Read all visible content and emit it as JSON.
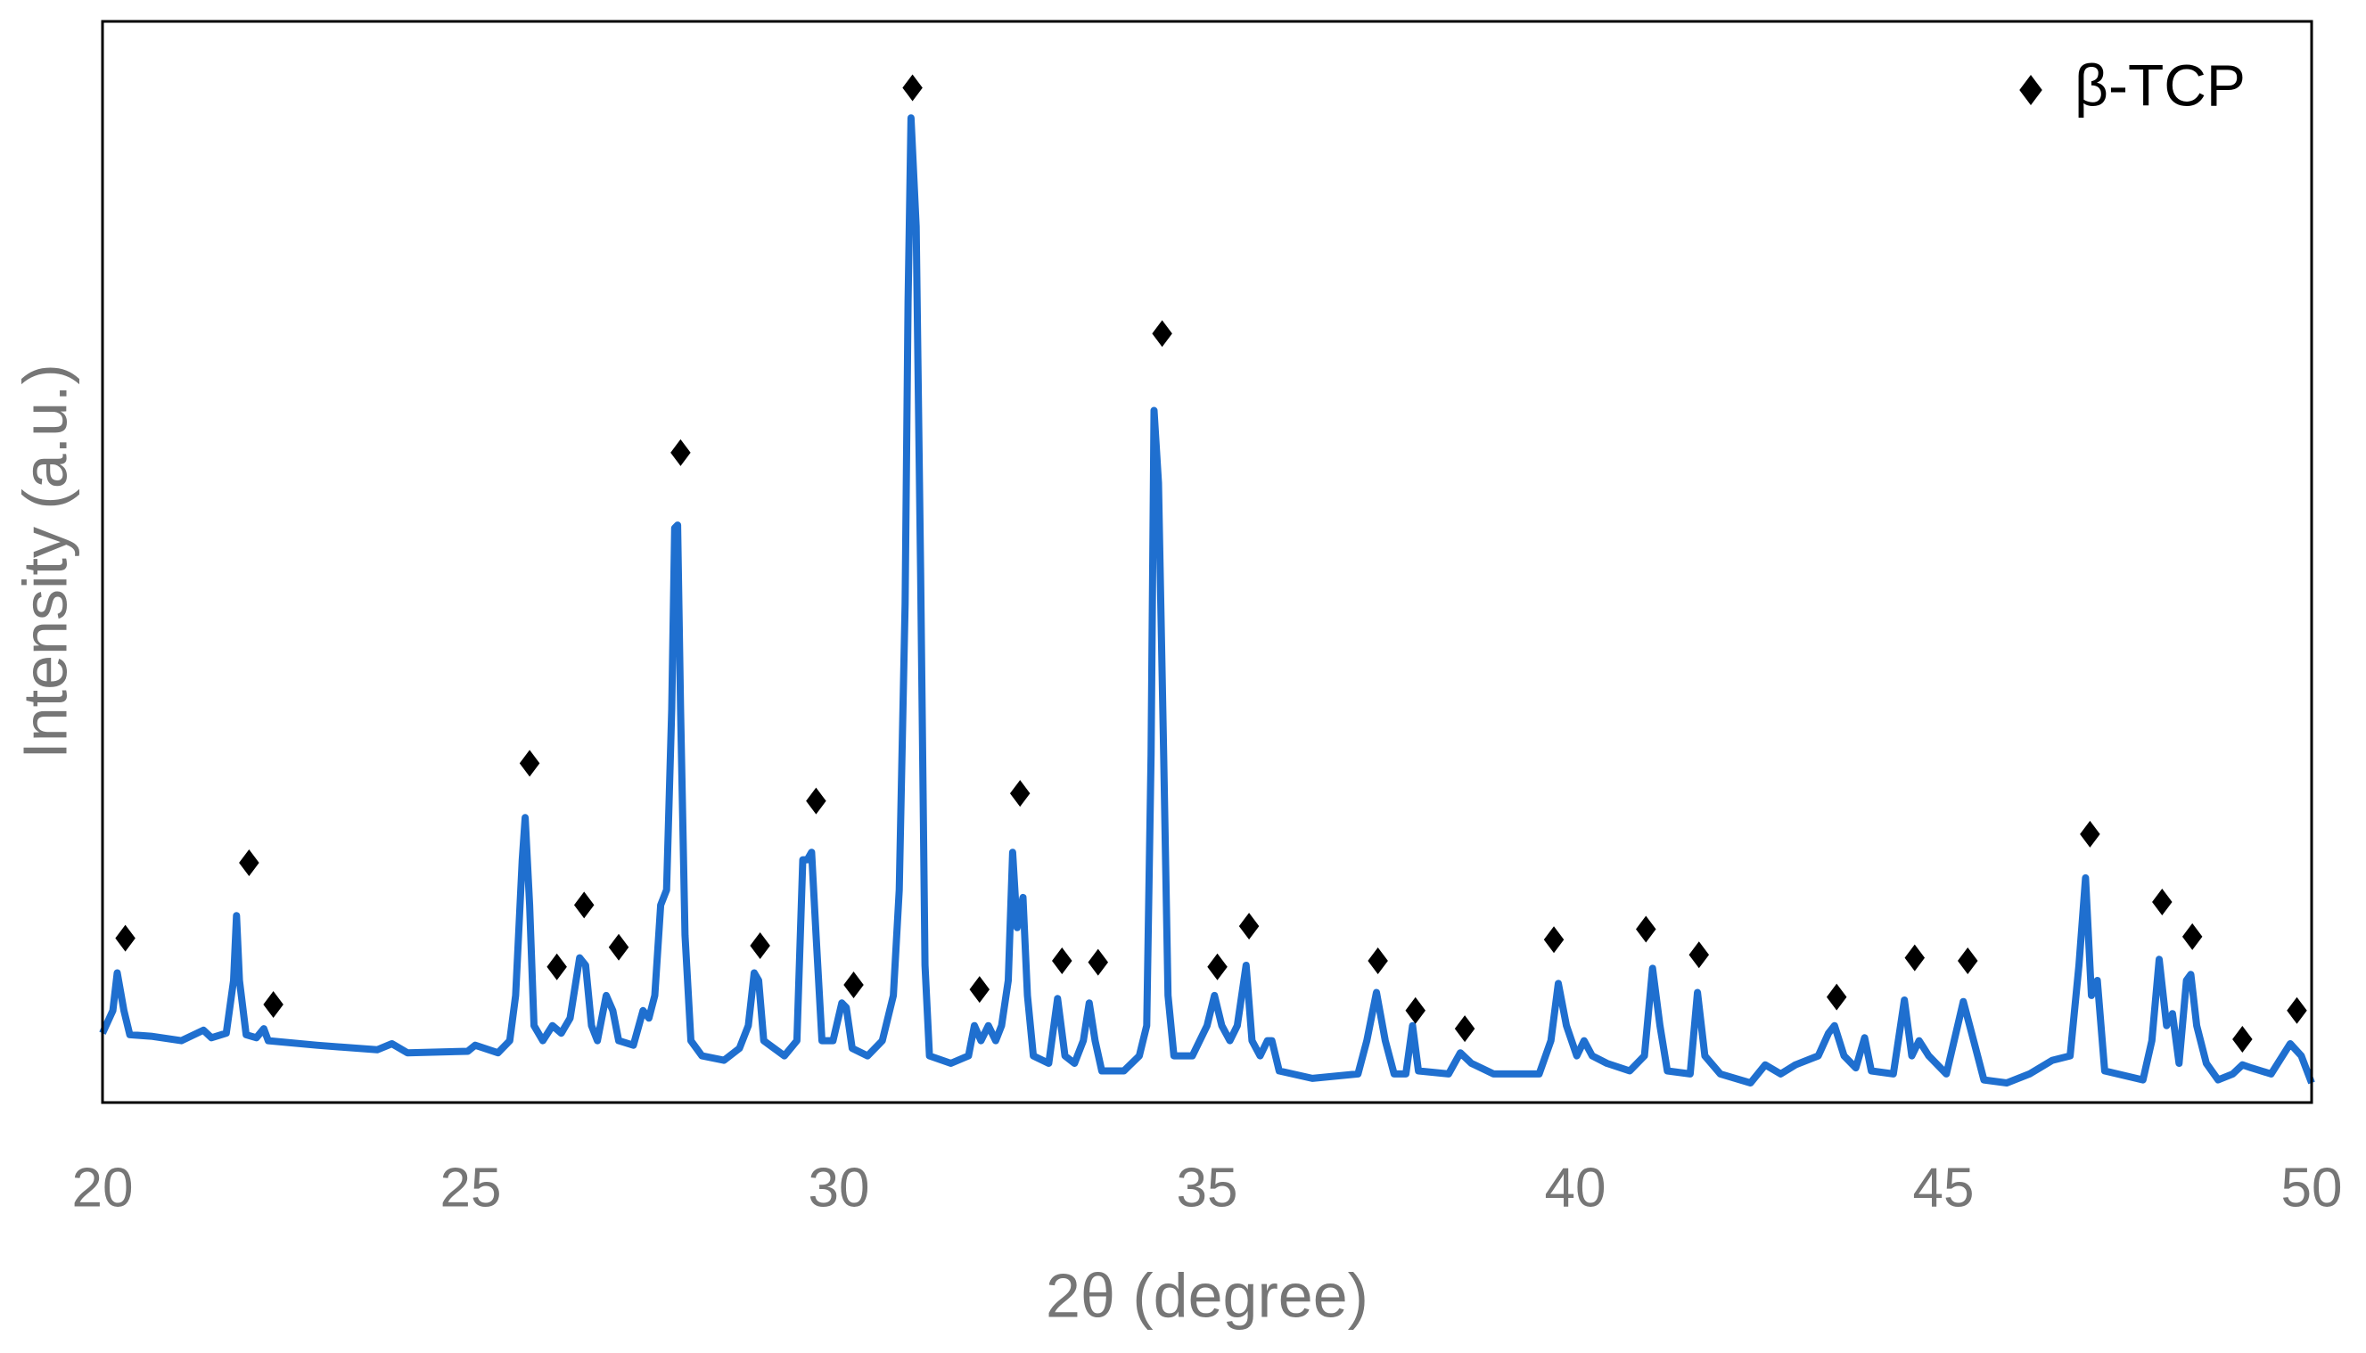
{
  "chart_data": {
    "type": "line",
    "x_label": "2θ (degree)",
    "y_label": "Intensity (a.u.)",
    "xlim": [
      20,
      50
    ],
    "xticks": [
      20,
      25,
      30,
      35,
      40,
      45,
      50
    ],
    "ylim": [
      0,
      717
    ],
    "legend": "top-right",
    "series": [
      {
        "kind": "line",
        "color": "#1f6fcf",
        "x": [
          20.0,
          20.14,
          20.2,
          20.29,
          20.37,
          20.66,
          21.07,
          21.37,
          21.48,
          21.68,
          21.78,
          21.82,
          21.86,
          21.95,
          22.09,
          22.19,
          22.25,
          22.91,
          23.73,
          23.93,
          24.14,
          24.96,
          25.06,
          25.37,
          25.53,
          25.61,
          25.7,
          25.74,
          25.8,
          25.86,
          25.98,
          26.11,
          26.23,
          26.35,
          26.48,
          26.56,
          26.64,
          26.72,
          26.84,
          26.93,
          27.01,
          27.21,
          27.34,
          27.42,
          27.5,
          27.58,
          27.66,
          27.73,
          27.77,
          27.81,
          27.85,
          27.91,
          27.99,
          28.14,
          28.44,
          28.65,
          28.77,
          28.85,
          28.91,
          28.98,
          29.26,
          29.43,
          29.51,
          29.57,
          29.63,
          29.69,
          29.77,
          29.92,
          30.04,
          30.1,
          30.18,
          30.39,
          30.59,
          30.74,
          30.82,
          30.9,
          30.94,
          30.98,
          31.05,
          31.11,
          31.17,
          31.23,
          31.52,
          31.76,
          31.84,
          31.93,
          32.03,
          32.13,
          32.21,
          32.3,
          32.36,
          32.42,
          32.5,
          32.56,
          32.64,
          32.85,
          32.97,
          33.07,
          33.2,
          33.32,
          33.4,
          33.48,
          33.57,
          33.87,
          34.08,
          34.18,
          34.24,
          34.28,
          34.34,
          34.41,
          34.47,
          34.55,
          34.8,
          35.0,
          35.1,
          35.2,
          35.31,
          35.41,
          35.53,
          35.61,
          35.72,
          35.82,
          35.88,
          35.98,
          36.43,
          37.05,
          37.17,
          37.3,
          37.42,
          37.54,
          37.7,
          37.79,
          37.87,
          38.28,
          38.44,
          38.59,
          38.89,
          39.51,
          39.67,
          39.77,
          39.88,
          40.02,
          40.12,
          40.23,
          40.43,
          40.74,
          40.94,
          41.05,
          41.15,
          41.25,
          41.56,
          41.66,
          41.76,
          41.97,
          42.38,
          42.58,
          42.79,
          42.99,
          43.3,
          43.44,
          43.52,
          43.65,
          43.81,
          43.93,
          44.02,
          44.32,
          44.47,
          44.57,
          44.67,
          44.8,
          45.04,
          45.27,
          45.41,
          45.55,
          45.86,
          46.17,
          46.48,
          46.72,
          46.84,
          46.93,
          47.01,
          47.09,
          47.19,
          47.71,
          47.83,
          47.93,
          48.03,
          48.11,
          48.2,
          48.3,
          48.36,
          48.44,
          48.57,
          48.73,
          48.93,
          49.06,
          49.18,
          49.45,
          49.71,
          49.86,
          50.0
        ],
        "values": [
          46,
          61,
          86,
          61,
          45,
          44,
          41,
          48,
          43,
          46,
          81,
          124,
          81,
          45,
          43,
          49,
          41,
          38,
          35,
          39,
          33,
          34,
          38,
          33,
          41,
          71,
          161,
          189,
          131,
          51,
          41,
          51,
          46,
          56,
          96,
          91,
          51,
          41,
          71,
          61,
          41,
          38,
          61,
          56,
          71,
          131,
          141,
          261,
          381,
          383,
          261,
          111,
          41,
          31,
          28,
          36,
          51,
          86,
          81,
          41,
          31,
          41,
          161,
          161,
          166,
          111,
          41,
          41,
          66,
          63,
          36,
          31,
          41,
          71,
          141,
          331,
          531,
          653,
          581,
          351,
          91,
          31,
          26,
          31,
          51,
          41,
          51,
          41,
          51,
          81,
          166,
          116,
          136,
          71,
          31,
          26,
          69,
          31,
          26,
          41,
          66,
          41,
          21,
          21,
          31,
          51,
          231,
          459,
          411,
          231,
          71,
          31,
          31,
          51,
          71,
          51,
          41,
          51,
          91,
          41,
          31,
          41,
          41,
          21,
          16,
          19,
          41,
          73,
          41,
          19,
          19,
          51,
          21,
          19,
          33,
          26,
          19,
          19,
          41,
          79,
          51,
          31,
          41,
          31,
          26,
          21,
          31,
          89,
          51,
          21,
          19,
          73,
          31,
          19,
          13,
          25,
          19,
          25,
          31,
          46,
          51,
          31,
          23,
          43,
          21,
          19,
          68,
          31,
          41,
          31,
          19,
          67,
          41,
          15,
          13,
          19,
          28,
          31,
          91,
          149,
          71,
          81,
          21,
          15,
          41,
          95,
          51,
          59,
          26,
          81,
          85,
          51,
          26,
          15,
          19,
          25,
          23,
          19,
          39,
          31,
          13
        ]
      },
      {
        "kind": "marker",
        "name": "β-TCP",
        "color": "#000000",
        "x": [
          20.31,
          21.99,
          22.32,
          25.8,
          26.17,
          26.54,
          27.01,
          27.85,
          28.93,
          29.69,
          30.2,
          31.0,
          31.91,
          32.46,
          33.03,
          33.52,
          34.39,
          35.14,
          35.57,
          37.32,
          37.83,
          38.5,
          39.71,
          40.96,
          41.68,
          43.55,
          44.61,
          45.33,
          46.99,
          47.97,
          48.38,
          49.06,
          49.8
        ],
        "values": [
          109,
          159,
          65,
          225,
          90,
          131,
          103,
          431,
          104,
          200,
          78,
          673,
          75,
          205,
          94,
          93,
          510,
          90,
          117,
          94,
          61,
          49,
          108,
          115,
          98,
          70,
          96,
          94,
          178,
          133,
          110,
          42,
          61
        ]
      }
    ]
  }
}
